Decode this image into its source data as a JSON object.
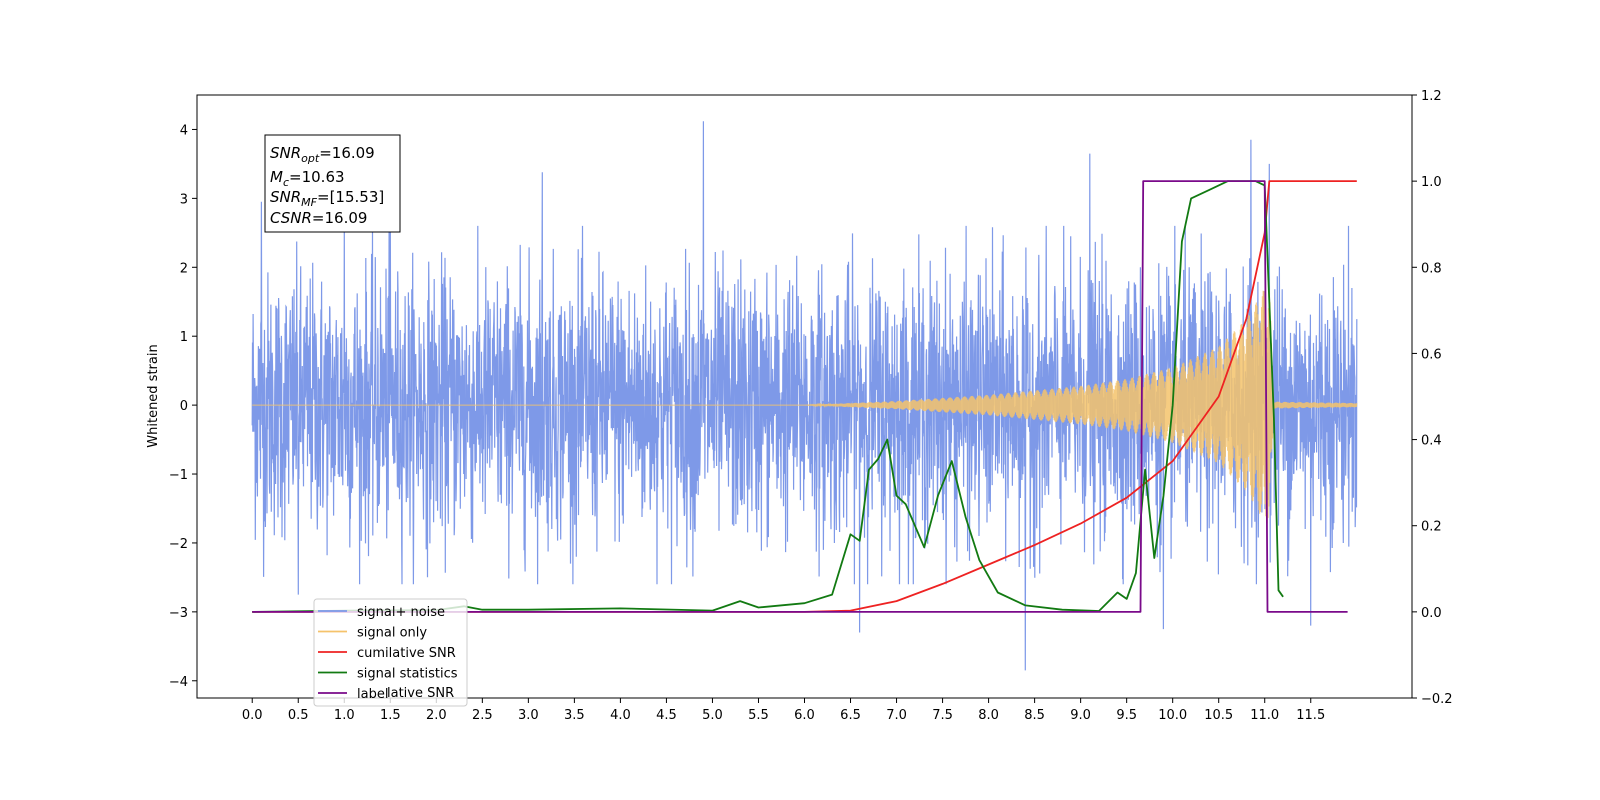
{
  "chart_data": {
    "type": "line",
    "ylabel": "Whitened strain",
    "xlim": [
      -0.6,
      12.6
    ],
    "ylim_left": [
      -4.25,
      4.5
    ],
    "ylim_right": [
      -0.2,
      1.2
    ],
    "x_ticks": [
      "0.0",
      "0.5",
      "1.0",
      "1.5",
      "2.0",
      "2.5",
      "3.0",
      "3.5",
      "4.0",
      "4.5",
      "5.0",
      "5.5",
      "6.0",
      "6.5",
      "7.0",
      "7.5",
      "8.0",
      "8.5",
      "9.0",
      "9.5",
      "10.0",
      "10.5",
      "11.0",
      "11.5"
    ],
    "y_ticks_left": [
      "−4",
      "−3",
      "−2",
      "−1",
      "0",
      "1",
      "2",
      "3",
      "4"
    ],
    "y_ticks_right": [
      "−0.2",
      "0.0",
      "0.2",
      "0.4",
      "0.6",
      "0.8",
      "1.0",
      "1.2"
    ],
    "stats_box": [
      {
        "base": "SNR",
        "sub": "opt",
        "value": "=16.09"
      },
      {
        "base": "M",
        "sub": "c",
        "value": "=10.63"
      },
      {
        "base": "SNR",
        "sub": "MF",
        "value": "=[15.53]"
      },
      {
        "base": "CSNR",
        "sub": "",
        "value": "=16.09"
      }
    ],
    "legend": {
      "placement": "lower-left",
      "entries": [
        {
          "label": "signal+ noise",
          "color": "#7b97e8"
        },
        {
          "label": "signal only",
          "color": "#f5c36b"
        },
        {
          "label": "cumilative SNR",
          "color": "#ee2222"
        },
        {
          "label": "signal statistics",
          "color": "#127a12"
        },
        {
          "label": "label",
          "color": "#7a0a8a"
        }
      ],
      "overlap_text": "lative SNR"
    },
    "series": [
      {
        "name": "signal+ noise",
        "axis": "left",
        "color": "#7b97e8",
        "x_range": [
          0.0,
          12.0
        ],
        "envelope_typical": 2.0,
        "peaks": [
          {
            "x": 0.1,
            "y": 2.95
          },
          {
            "x": 1.0,
            "y": 2.75
          },
          {
            "x": 1.5,
            "y": 2.9
          },
          {
            "x": 3.15,
            "y": 3.38
          },
          {
            "x": 4.9,
            "y": 4.12
          },
          {
            "x": 9.1,
            "y": 3.65
          },
          {
            "x": 10.85,
            "y": 3.85
          },
          {
            "x": 11.05,
            "y": 3.5
          },
          {
            "x": 0.5,
            "y": -2.75
          },
          {
            "x": 6.6,
            "y": -3.3
          },
          {
            "x": 8.4,
            "y": -3.85
          },
          {
            "x": 9.9,
            "y": -3.25
          },
          {
            "x": 11.5,
            "y": -3.2
          }
        ]
      },
      {
        "name": "signal only",
        "axis": "left",
        "color": "#f5c36b",
        "x_range": [
          0.0,
          12.0
        ],
        "envelope": [
          [
            0,
            0.0
          ],
          [
            6.0,
            0.0
          ],
          [
            7.0,
            0.06
          ],
          [
            8.0,
            0.15
          ],
          [
            9.0,
            0.28
          ],
          [
            9.5,
            0.38
          ],
          [
            10.0,
            0.55
          ],
          [
            10.5,
            0.85
          ],
          [
            10.8,
            1.25
          ],
          [
            11.0,
            1.7
          ],
          [
            11.05,
            1.75
          ],
          [
            11.1,
            0.05
          ],
          [
            12.0,
            0.03
          ]
        ]
      },
      {
        "name": "cumilative SNR",
        "axis": "right",
        "color": "#ee2222",
        "x": [
          0,
          6.0,
          6.5,
          7.0,
          7.5,
          8.0,
          8.5,
          9.0,
          9.5,
          10.0,
          10.5,
          10.8,
          11.0,
          11.05,
          12.0
        ],
        "y": [
          0.0,
          0.0,
          0.003,
          0.025,
          0.065,
          0.11,
          0.155,
          0.205,
          0.265,
          0.35,
          0.5,
          0.68,
          0.88,
          1.0,
          1.0
        ]
      },
      {
        "name": "signal statistics",
        "axis": "right",
        "color": "#127a12",
        "x": [
          0,
          1.0,
          2.0,
          2.3,
          2.5,
          3.0,
          4.0,
          5.0,
          5.3,
          5.5,
          6.0,
          6.3,
          6.5,
          6.6,
          6.7,
          6.8,
          6.9,
          7.0,
          7.1,
          7.3,
          7.45,
          7.6,
          7.75,
          7.9,
          8.1,
          8.4,
          8.8,
          9.2,
          9.4,
          9.5,
          9.6,
          9.7,
          9.8,
          9.9,
          10.0,
          10.1,
          10.2,
          10.4,
          10.6,
          10.8,
          10.9,
          11.0,
          11.1,
          11.15,
          11.2
        ],
        "y": [
          0.0,
          0.003,
          0.004,
          0.013,
          0.005,
          0.005,
          0.008,
          0.003,
          0.025,
          0.01,
          0.02,
          0.04,
          0.18,
          0.165,
          0.33,
          0.355,
          0.4,
          0.27,
          0.25,
          0.15,
          0.27,
          0.35,
          0.22,
          0.12,
          0.045,
          0.015,
          0.005,
          0.002,
          0.045,
          0.03,
          0.09,
          0.33,
          0.125,
          0.27,
          0.48,
          0.86,
          0.96,
          0.98,
          1.0,
          1.0,
          1.0,
          0.99,
          0.45,
          0.05,
          0.035
        ]
      },
      {
        "name": "label",
        "axis": "right",
        "color": "#7a0a8a",
        "x": [
          0,
          9.65,
          9.68,
          11.0,
          11.03,
          11.9
        ],
        "y": [
          0.0,
          0.0,
          1.0,
          1.0,
          0.0,
          0.0
        ]
      }
    ]
  }
}
